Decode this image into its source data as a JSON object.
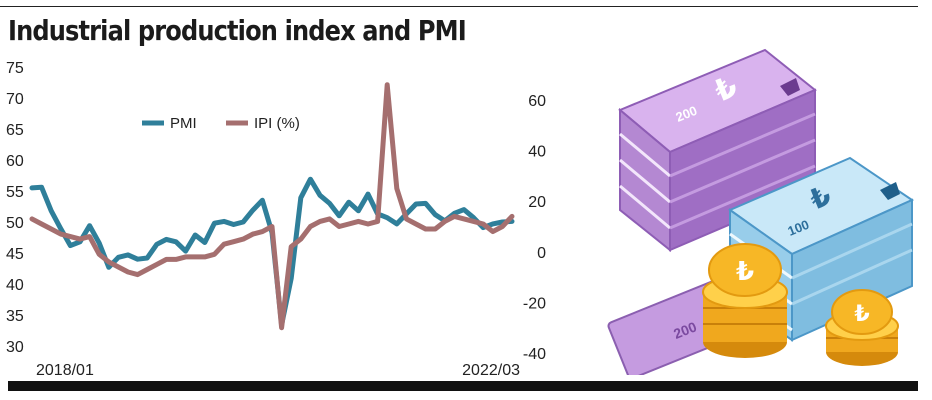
{
  "header": {
    "title": "Industrial production index and PMI"
  },
  "colors": {
    "pmi": "#2f7f9a",
    "ipi": "#a56f6f"
  },
  "illustration": {
    "icon": "money-stacks-and-coins-icon",
    "currency_symbol": "₺",
    "note_values": [
      "200",
      "100"
    ]
  },
  "chart_data": {
    "type": "line",
    "title": "Industrial production index and PMI",
    "x_start_label": "2018/01",
    "x_end_label": "2022/03",
    "x_labels_shown": [
      "2018/01",
      "2022/03"
    ],
    "y_left": {
      "range": [
        30,
        75
      ],
      "ticks": [
        "75",
        "70",
        "65",
        "60",
        "55",
        "50",
        "45",
        "40",
        "35",
        "30"
      ]
    },
    "y_right": {
      "range": [
        -40,
        70
      ],
      "ticks": [
        "60",
        "40",
        "20",
        "0",
        "-20",
        "-40"
      ]
    },
    "legend": {
      "position": "top-left",
      "entries": [
        "PMI",
        "IPI (%)"
      ]
    },
    "grid": false,
    "series": [
      {
        "name": "PMI",
        "axis": "left",
        "values": [
          55.5,
          55.6,
          51.8,
          48.9,
          46.2,
          46.8,
          49.4,
          46.6,
          42.7,
          44.3,
          44.7,
          44.0,
          44.2,
          46.4,
          47.2,
          46.8,
          45.3,
          47.9,
          46.7,
          49.8,
          50.1,
          49.6,
          50.0,
          51.9,
          53.5,
          48.3,
          33.4,
          40.9,
          53.9,
          56.9,
          54.3,
          53.0,
          51.0,
          53.2,
          51.8,
          54.5,
          51.3,
          50.7,
          49.7,
          51.3,
          52.9,
          53.0,
          51.2,
          50.2,
          51.4,
          52.0,
          50.7,
          49.1,
          49.7,
          50.0,
          50.1
        ]
      },
      {
        "name": "IPI (%)",
        "axis": "right",
        "values": [
          13,
          11,
          9,
          7,
          6,
          5,
          6,
          -1,
          -4,
          -6,
          -8,
          -9,
          -7,
          -5,
          -3,
          -3,
          -2,
          -2,
          -2,
          -1,
          3,
          4,
          5,
          7,
          8,
          10,
          -30,
          2,
          5,
          10,
          12,
          13,
          10,
          11,
          12,
          11,
          12,
          66,
          25,
          13,
          11,
          9,
          9,
          12,
          14,
          13,
          12,
          11,
          8,
          10,
          14
        ]
      }
    ]
  }
}
